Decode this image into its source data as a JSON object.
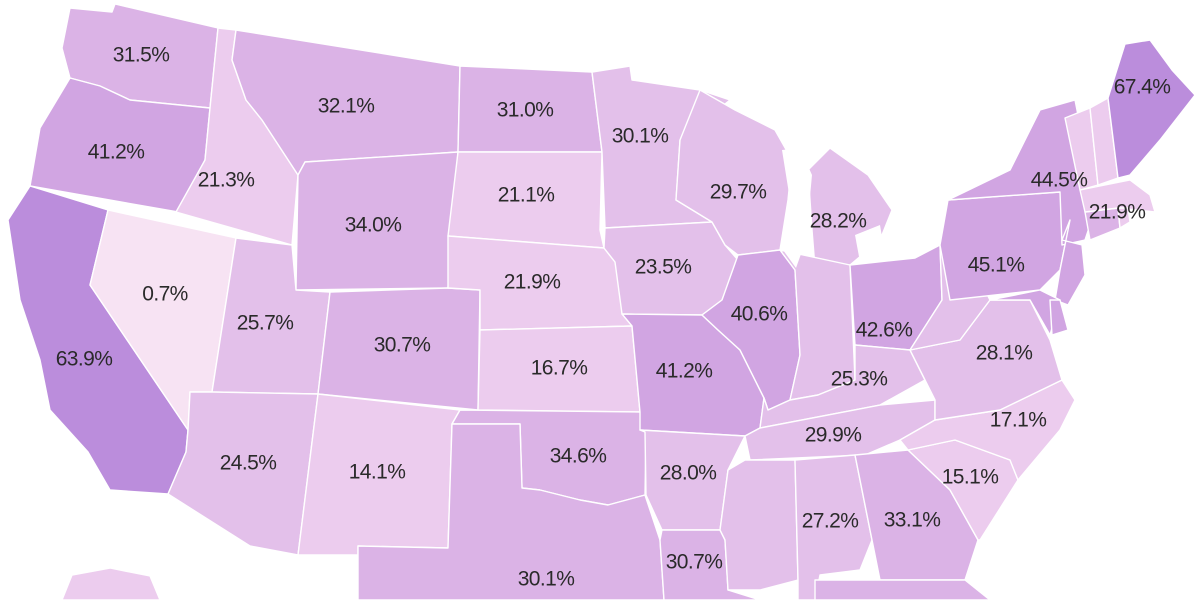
{
  "map": {
    "color_scale": {
      "very_light": "#f7e3f3",
      "light": "#ecccee",
      "medium_light": "#e3c0ea",
      "medium": "#dbb3e6",
      "medium_dark": "#d1a5e2",
      "dark": "#bb8ddc"
    },
    "states": [
      {
        "id": "WA",
        "label": "31.5%",
        "value": 31.5,
        "shade": "medium"
      },
      {
        "id": "OR",
        "label": "41.2%",
        "value": 41.2,
        "shade": "medium_dark"
      },
      {
        "id": "CA",
        "label": "63.9%",
        "value": 63.9,
        "shade": "dark"
      },
      {
        "id": "NV",
        "label": "0.7%",
        "value": 0.7,
        "shade": "very_light"
      },
      {
        "id": "ID",
        "label": "21.3%",
        "value": 21.3,
        "shade": "light"
      },
      {
        "id": "MT",
        "label": "32.1%",
        "value": 32.1,
        "shade": "medium"
      },
      {
        "id": "WY",
        "label": "34.0%",
        "value": 34.0,
        "shade": "medium"
      },
      {
        "id": "UT",
        "label": "25.7%",
        "value": 25.7,
        "shade": "medium_light"
      },
      {
        "id": "CO",
        "label": "30.7%",
        "value": 30.7,
        "shade": "medium"
      },
      {
        "id": "AZ",
        "label": "24.5%",
        "value": 24.5,
        "shade": "medium_light"
      },
      {
        "id": "NM",
        "label": "14.1%",
        "value": 14.1,
        "shade": "light"
      },
      {
        "id": "ND",
        "label": "31.0%",
        "value": 31.0,
        "shade": "medium"
      },
      {
        "id": "SD",
        "label": "21.1%",
        "value": 21.1,
        "shade": "light"
      },
      {
        "id": "NE",
        "label": "21.9%",
        "value": 21.9,
        "shade": "light"
      },
      {
        "id": "KS",
        "label": "16.7%",
        "value": 16.7,
        "shade": "light"
      },
      {
        "id": "OK",
        "label": "34.6%",
        "value": 34.6,
        "shade": "medium"
      },
      {
        "id": "TX",
        "label": "30.1%",
        "value": 30.1,
        "shade": "medium"
      },
      {
        "id": "MN",
        "label": "30.1%",
        "value": 30.1,
        "shade": "medium_light"
      },
      {
        "id": "IA",
        "label": "23.5%",
        "value": 23.5,
        "shade": "medium_light"
      },
      {
        "id": "MO",
        "label": "41.2%",
        "value": 41.2,
        "shade": "medium_dark"
      },
      {
        "id": "AR",
        "label": "28.0%",
        "value": 28.0,
        "shade": "medium_light"
      },
      {
        "id": "LA",
        "label": "30.7%",
        "value": 30.7,
        "shade": "medium"
      },
      {
        "id": "WI",
        "label": "29.7%",
        "value": 29.7,
        "shade": "medium_light"
      },
      {
        "id": "IL",
        "label": "40.6%",
        "value": 40.6,
        "shade": "medium_dark"
      },
      {
        "id": "MI",
        "label": "28.2%",
        "value": 28.2,
        "shade": "medium_light"
      },
      {
        "id": "IN",
        "label": "",
        "shade": "medium_light"
      },
      {
        "id": "OH",
        "label": "42.6%",
        "value": 42.6,
        "shade": "medium_dark"
      },
      {
        "id": "KY",
        "label": "25.3%",
        "value": 25.3,
        "shade": "medium_light"
      },
      {
        "id": "TN",
        "label": "29.9%",
        "value": 29.9,
        "shade": "medium_light"
      },
      {
        "id": "MS",
        "label": "",
        "shade": "medium_light"
      },
      {
        "id": "AL",
        "label": "27.2%",
        "value": 27.2,
        "shade": "medium_light"
      },
      {
        "id": "GA",
        "label": "33.1%",
        "value": 33.1,
        "shade": "medium"
      },
      {
        "id": "FL",
        "label": "",
        "shade": "medium"
      },
      {
        "id": "SC",
        "label": "15.1%",
        "value": 15.1,
        "shade": "light"
      },
      {
        "id": "NC",
        "label": "17.1%",
        "value": 17.1,
        "shade": "light"
      },
      {
        "id": "VA",
        "label": "28.1%",
        "value": 28.1,
        "shade": "medium_light"
      },
      {
        "id": "WV",
        "label": "",
        "shade": "medium_light"
      },
      {
        "id": "PA",
        "label": "45.1%",
        "value": 45.1,
        "shade": "medium_dark"
      },
      {
        "id": "NY",
        "label": "44.5%",
        "value": 44.5,
        "shade": "medium_dark"
      },
      {
        "id": "NJ",
        "label": "",
        "shade": "medium_dark"
      },
      {
        "id": "MD",
        "label": "",
        "shade": "medium_dark"
      },
      {
        "id": "DE",
        "label": "",
        "shade": "medium_dark"
      },
      {
        "id": "CT",
        "label": "",
        "shade": "medium"
      },
      {
        "id": "MA",
        "label": "21.9%",
        "value": 21.9,
        "shade": "light"
      },
      {
        "id": "RI",
        "label": "",
        "shade": "light"
      },
      {
        "id": "VT",
        "label": "",
        "shade": "light"
      },
      {
        "id": "NH",
        "label": "",
        "shade": "light"
      },
      {
        "id": "ME",
        "label": "67.4%",
        "value": 67.4,
        "shade": "dark"
      },
      {
        "id": "AK",
        "label": "",
        "shade": "light"
      }
    ]
  }
}
